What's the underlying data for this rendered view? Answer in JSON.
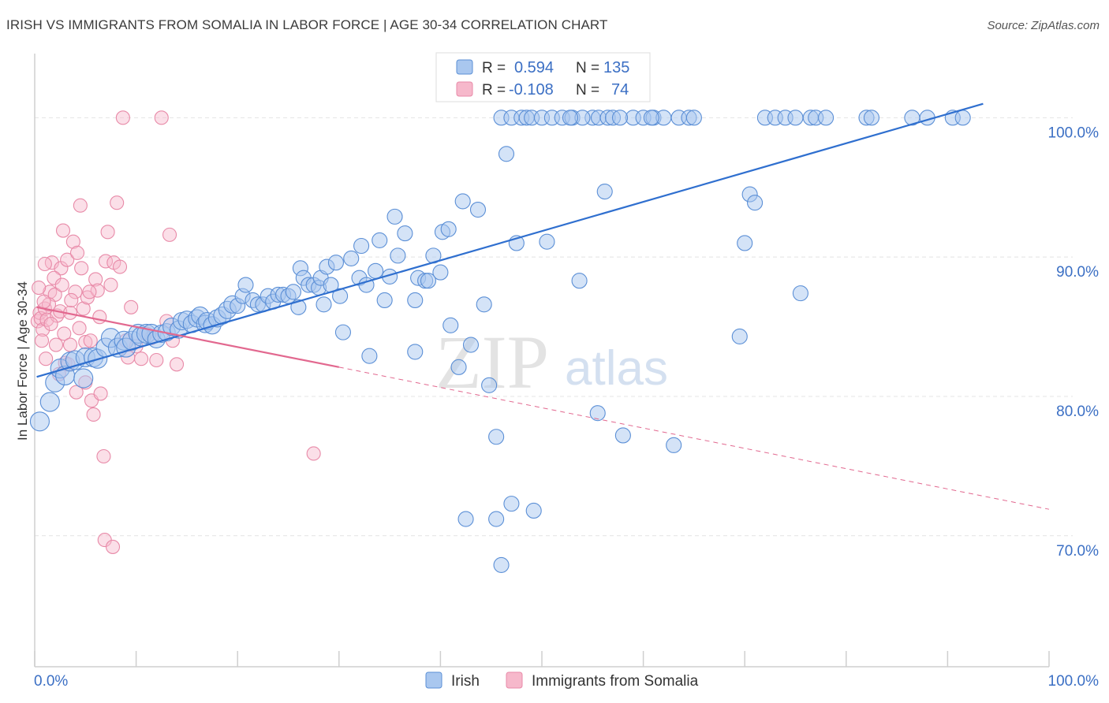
{
  "title": "IRISH VS IMMIGRANTS FROM SOMALIA IN LABOR FORCE | AGE 30-34 CORRELATION CHART",
  "source": "Source: ZipAtlas.com",
  "watermark": {
    "zip": "ZIP",
    "atlas": "atlas"
  },
  "colors": {
    "irish_fill": "#a9c7ef",
    "irish_stroke": "#5b8fd6",
    "irish_line": "#2f6fcf",
    "somalia_fill": "#f6b8cb",
    "somalia_stroke": "#e88aa8",
    "somalia_line": "#e2688f",
    "tick_label": "#3b6fc4",
    "grid": "#e4e4e4"
  },
  "legend": {
    "irish": {
      "r_label": "R =",
      "r_value": "0.594",
      "n_label": "N =",
      "n_value": "135"
    },
    "somalia": {
      "r_label": "R =",
      "r_value": "-0.108",
      "n_label": "N =",
      "n_value": "74"
    }
  },
  "bottom_legend": {
    "irish": "Irish",
    "somalia": "Immigrants from Somalia"
  },
  "chart_data": {
    "type": "scatter",
    "title": "IRISH VS IMMIGRANTS FROM SOMALIA IN LABOR FORCE | AGE 30-34 CORRELATION CHART",
    "xlabel": "",
    "ylabel": "In Labor Force | Age 30-34",
    "xlim": [
      0,
      100
    ],
    "ylim": [
      60.6,
      104.6
    ],
    "x_tick_labels": [
      "0.0%",
      "100.0%"
    ],
    "y_ticks": [
      {
        "value": 100,
        "label": "100.0%"
      },
      {
        "value": 90,
        "label": "90.0%"
      },
      {
        "value": 80,
        "label": "80.0%"
      },
      {
        "value": 70,
        "label": "70.0%"
      }
    ],
    "grid": true,
    "legend_position": "top-center",
    "series": [
      {
        "name": "Irish",
        "color": "#5b8fd6",
        "trend": {
          "x0": 0.2,
          "y0": 81.4,
          "x1": 93.5,
          "y1": 101.0
        },
        "points": [
          [
            0.5,
            78.2
          ],
          [
            1.5,
            79.6
          ],
          [
            2.0,
            81.0
          ],
          [
            2.5,
            82.0
          ],
          [
            3.0,
            81.5
          ],
          [
            3.5,
            82.5
          ],
          [
            4.0,
            82.6
          ],
          [
            4.8,
            81.3
          ],
          [
            5.0,
            82.8
          ],
          [
            5.8,
            82.8
          ],
          [
            6.2,
            82.7
          ],
          [
            7.0,
            83.5
          ],
          [
            7.5,
            84.2
          ],
          [
            8.2,
            83.5
          ],
          [
            8.8,
            84.0
          ],
          [
            9.0,
            83.5
          ],
          [
            9.6,
            84.0
          ],
          [
            10.2,
            84.5
          ],
          [
            10.5,
            84.3
          ],
          [
            11.0,
            84.5
          ],
          [
            11.5,
            84.5
          ],
          [
            12.0,
            84.1
          ],
          [
            12.5,
            84.5
          ],
          [
            13.0,
            84.6
          ],
          [
            13.5,
            85.0
          ],
          [
            14.2,
            84.8
          ],
          [
            14.5,
            85.4
          ],
          [
            15.0,
            85.5
          ],
          [
            15.5,
            85.2
          ],
          [
            16.0,
            85.6
          ],
          [
            16.3,
            85.8
          ],
          [
            16.8,
            85.2
          ],
          [
            17.0,
            85.4
          ],
          [
            17.5,
            85.1
          ],
          [
            18.0,
            85.6
          ],
          [
            18.5,
            85.8
          ],
          [
            19.0,
            86.2
          ],
          [
            19.5,
            86.6
          ],
          [
            20.0,
            86.5
          ],
          [
            20.5,
            87.2
          ],
          [
            20.8,
            88.0
          ],
          [
            21.5,
            86.9
          ],
          [
            22.0,
            86.6
          ],
          [
            22.5,
            86.6
          ],
          [
            23.0,
            87.2
          ],
          [
            23.5,
            86.8
          ],
          [
            24.0,
            87.3
          ],
          [
            24.5,
            87.3
          ],
          [
            25.0,
            87.2
          ],
          [
            25.5,
            87.5
          ],
          [
            26.0,
            86.4
          ],
          [
            26.2,
            89.2
          ],
          [
            26.5,
            88.5
          ],
          [
            27.0,
            88.0
          ],
          [
            27.5,
            88.0
          ],
          [
            28.0,
            87.8
          ],
          [
            28.2,
            88.5
          ],
          [
            28.5,
            86.6
          ],
          [
            28.8,
            89.3
          ],
          [
            29.2,
            88.0
          ],
          [
            29.7,
            89.6
          ],
          [
            30.1,
            87.2
          ],
          [
            30.4,
            84.6
          ],
          [
            31.2,
            89.9
          ],
          [
            32.0,
            88.5
          ],
          [
            32.2,
            90.8
          ],
          [
            32.7,
            88.0
          ],
          [
            33.0,
            82.9
          ],
          [
            33.6,
            89.0
          ],
          [
            34.0,
            91.2
          ],
          [
            34.5,
            86.9
          ],
          [
            35.0,
            88.6
          ],
          [
            35.5,
            92.9
          ],
          [
            35.8,
            90.1
          ],
          [
            36.5,
            91.7
          ],
          [
            37.5,
            83.2
          ],
          [
            37.5,
            86.9
          ],
          [
            37.8,
            88.5
          ],
          [
            38.5,
            88.3
          ],
          [
            38.8,
            88.3
          ],
          [
            39.3,
            90.1
          ],
          [
            40.0,
            88.9
          ],
          [
            40.2,
            91.8
          ],
          [
            40.8,
            92.0
          ],
          [
            41.0,
            85.1
          ],
          [
            41.8,
            82.1
          ],
          [
            42.2,
            94.0
          ],
          [
            43.0,
            83.7
          ],
          [
            43.7,
            93.4
          ],
          [
            44.3,
            86.6
          ],
          [
            44.8,
            80.8
          ],
          [
            45.5,
            77.1
          ],
          [
            46.0,
            100.0
          ],
          [
            46.5,
            97.4
          ],
          [
            47.0,
            100.0
          ],
          [
            47.5,
            91.0
          ],
          [
            48.0,
            100.0
          ],
          [
            48.5,
            100.0
          ],
          [
            49.0,
            100.0
          ],
          [
            50.0,
            100.0
          ],
          [
            50.5,
            91.1
          ],
          [
            51.0,
            100.0
          ],
          [
            52.0,
            100.0
          ],
          [
            53.0,
            100.0
          ],
          [
            53.7,
            88.3
          ],
          [
            55.0,
            100.0
          ],
          [
            55.5,
            78.8
          ],
          [
            55.6,
            100.0
          ],
          [
            56.2,
            94.7
          ],
          [
            56.5,
            100.0
          ],
          [
            57.0,
            100.0
          ],
          [
            58.0,
            77.2
          ],
          [
            59.0,
            100.0
          ],
          [
            60.0,
            100.0
          ],
          [
            61.0,
            100.0
          ],
          [
            62.0,
            100.0
          ],
          [
            63.0,
            76.5
          ],
          [
            63.5,
            100.0
          ],
          [
            64.5,
            100.0
          ],
          [
            65.0,
            100.0
          ],
          [
            69.5,
            84.3
          ],
          [
            70.0,
            91.0
          ],
          [
            70.5,
            94.5
          ],
          [
            71.0,
            93.9
          ],
          [
            72.0,
            100.0
          ],
          [
            73.0,
            100.0
          ],
          [
            74.0,
            100.0
          ],
          [
            75.0,
            100.0
          ],
          [
            75.5,
            87.4
          ],
          [
            76.5,
            100.0
          ],
          [
            77.0,
            100.0
          ],
          [
            78.0,
            100.0
          ],
          [
            82.0,
            100.0
          ],
          [
            82.5,
            100.0
          ],
          [
            86.5,
            100.0
          ],
          [
            88.0,
            100.0
          ],
          [
            90.5,
            100.0
          ],
          [
            91.5,
            100.0
          ],
          [
            45.5,
            71.2
          ],
          [
            47.0,
            72.3
          ],
          [
            49.2,
            71.8
          ],
          [
            46.0,
            67.9
          ],
          [
            42.5,
            71.2
          ],
          [
            54.0,
            100.0
          ],
          [
            57.7,
            100.0
          ],
          [
            60.8,
            100.0
          ],
          [
            52.8,
            100.0
          ]
        ]
      },
      {
        "name": "Immigrants from Somalia",
        "color": "#e88aa8",
        "trend": {
          "x0": 0.2,
          "y0": 86.4,
          "x1": 30.0,
          "y1": 82.1,
          "dash_x1": 100.0,
          "dash_y1": 71.9
        },
        "points": [
          [
            0.3,
            85.4
          ],
          [
            0.5,
            86.0
          ],
          [
            0.6,
            85.6
          ],
          [
            0.8,
            84.8
          ],
          [
            1.0,
            86.3
          ],
          [
            1.2,
            85.5
          ],
          [
            1.5,
            87.5
          ],
          [
            1.7,
            89.6
          ],
          [
            2.0,
            87.3
          ],
          [
            2.2,
            85.8
          ],
          [
            2.5,
            86.1
          ],
          [
            2.6,
            89.2
          ],
          [
            2.8,
            91.9
          ],
          [
            2.9,
            84.5
          ],
          [
            3.0,
            82.4
          ],
          [
            3.2,
            89.8
          ],
          [
            3.5,
            86.0
          ],
          [
            3.5,
            83.7
          ],
          [
            3.8,
            91.1
          ],
          [
            4.0,
            87.5
          ],
          [
            4.2,
            90.3
          ],
          [
            4.5,
            93.7
          ],
          [
            4.6,
            89.2
          ],
          [
            4.8,
            86.3
          ],
          [
            5.0,
            83.9
          ],
          [
            5.0,
            81.0
          ],
          [
            5.2,
            87.1
          ],
          [
            5.5,
            84.0
          ],
          [
            5.6,
            79.7
          ],
          [
            5.8,
            78.7
          ],
          [
            6.0,
            88.4
          ],
          [
            6.2,
            87.6
          ],
          [
            6.5,
            80.2
          ],
          [
            6.8,
            75.7
          ],
          [
            6.9,
            69.7
          ],
          [
            7.0,
            89.7
          ],
          [
            7.2,
            91.8
          ],
          [
            7.5,
            88.0
          ],
          [
            7.7,
            69.2
          ],
          [
            7.8,
            89.6
          ],
          [
            8.1,
            93.9
          ],
          [
            8.4,
            89.3
          ],
          [
            8.7,
            100.0
          ],
          [
            9.0,
            84.0
          ],
          [
            9.2,
            82.8
          ],
          [
            9.5,
            86.4
          ],
          [
            10.0,
            83.6
          ],
          [
            10.5,
            82.7
          ],
          [
            11.0,
            84.5
          ],
          [
            11.5,
            84.2
          ],
          [
            12.0,
            82.6
          ],
          [
            12.5,
            100.0
          ],
          [
            13.0,
            85.4
          ],
          [
            13.3,
            91.6
          ],
          [
            13.6,
            84.0
          ],
          [
            14.0,
            82.3
          ],
          [
            1.0,
            89.5
          ],
          [
            1.4,
            86.6
          ],
          [
            2.1,
            83.7
          ],
          [
            2.4,
            81.6
          ],
          [
            1.9,
            88.5
          ],
          [
            3.6,
            86.9
          ],
          [
            4.4,
            84.9
          ],
          [
            5.4,
            87.5
          ],
          [
            6.4,
            85.7
          ],
          [
            0.7,
            84.0
          ],
          [
            1.1,
            82.7
          ],
          [
            2.7,
            88.0
          ],
          [
            3.3,
            82.3
          ],
          [
            4.1,
            80.3
          ],
          [
            0.9,
            86.8
          ],
          [
            27.5,
            75.9
          ],
          [
            1.6,
            85.2
          ],
          [
            0.4,
            87.8
          ]
        ]
      }
    ]
  }
}
